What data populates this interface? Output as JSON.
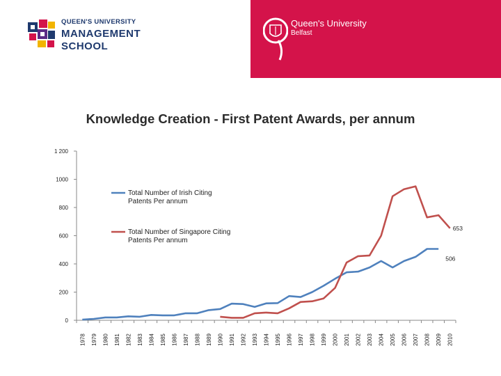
{
  "header": {
    "left_logo": {
      "line1": "QUEEN'S UNIVERSITY",
      "line2": "MANAGEMENT",
      "line3": "SCHOOL"
    },
    "right_logo": {
      "line1": "Queen's University",
      "line2": "Belfast"
    },
    "colors": {
      "band": "#d4134a",
      "navy": "#1f3a6e"
    }
  },
  "chart_data": {
    "type": "line",
    "title": "Knowledge Creation - First Patent Awards, per annum",
    "ylim": [
      0,
      1200
    ],
    "yticks": [
      0,
      200,
      400,
      600,
      800,
      1000,
      1200
    ],
    "ytick_labels": [
      "0",
      "200",
      "400",
      "600",
      "800",
      "1000",
      "1 200"
    ],
    "categories": [
      "1978",
      "1979",
      "1980",
      "1981",
      "1982",
      "1983",
      "1984",
      "1985",
      "1986",
      "1987",
      "1988",
      "1989",
      "1990",
      "1991",
      "1992",
      "1993",
      "1994",
      "1995",
      "1996",
      "1997",
      "1998",
      "1999",
      "2000",
      "2001",
      "2002",
      "2003",
      "2004",
      "2005",
      "2006",
      "2007",
      "2008",
      "2009",
      "2010"
    ],
    "legend_position": "inside-left",
    "series": [
      {
        "name": "Total Number of Irish Citing Patents Per annum",
        "color": "#4f81bd",
        "values": [
          5,
          10,
          20,
          20,
          28,
          25,
          38,
          35,
          35,
          50,
          50,
          72,
          80,
          118,
          115,
          95,
          120,
          122,
          172,
          165,
          200,
          245,
          295,
          340,
          345,
          375,
          420,
          375,
          420,
          450,
          506,
          506,
          null
        ],
        "end_label": "506"
      },
      {
        "name": "Total Number of Singapore Citing Patents Per annum",
        "color": "#c0504d",
        "values": [
          null,
          null,
          null,
          null,
          null,
          null,
          null,
          null,
          null,
          null,
          null,
          null,
          25,
          18,
          18,
          50,
          55,
          50,
          85,
          130,
          135,
          155,
          230,
          410,
          455,
          460,
          600,
          880,
          930,
          950,
          730,
          745,
          653
        ],
        "end_label": "653"
      }
    ]
  }
}
